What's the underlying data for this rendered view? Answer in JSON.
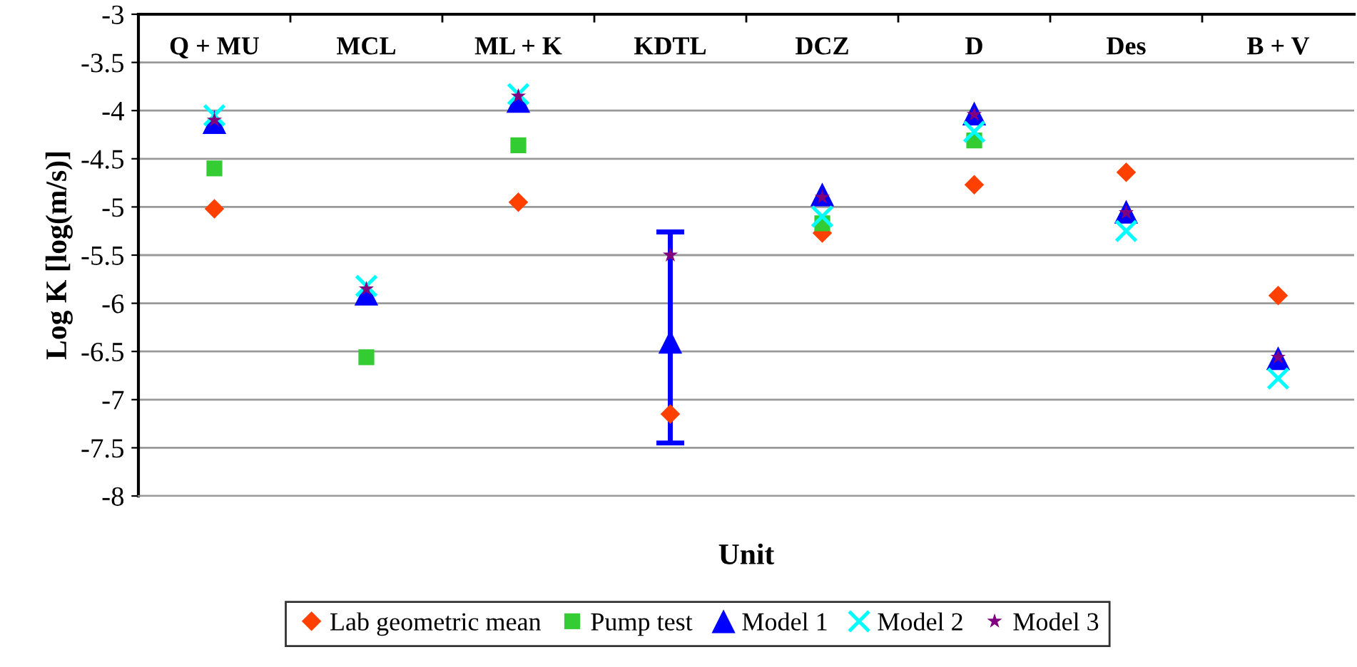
{
  "chart_data": {
    "type": "scatter",
    "xlabel": "Unit",
    "ylabel": "Log K [log(m/s)]",
    "categories": [
      "Q + MU",
      "MCL",
      "ML + K",
      "KDTL",
      "DCZ",
      "D",
      "Des",
      "B + V"
    ],
    "ylim": [
      -8,
      -3
    ],
    "yticks": [
      -8,
      -7.5,
      -7,
      -6.5,
      -6,
      -5.5,
      -5,
      -4.5,
      -4,
      -3.5,
      -3
    ],
    "grid": "y",
    "legend": "bottom",
    "series": [
      {
        "name": "Lab geometric mean",
        "color": "#ff4000",
        "marker": "diamond",
        "values": [
          -5.02,
          null,
          -4.95,
          -7.15,
          -5.27,
          -4.77,
          -4.64,
          -5.92
        ]
      },
      {
        "name": "Pump test",
        "color": "#33cc33",
        "marker": "square",
        "values": [
          -4.6,
          -6.56,
          -4.36,
          null,
          -5.17,
          -4.31,
          null,
          null
        ]
      },
      {
        "name": "Model 1",
        "color": "#0000ff",
        "marker": "triangle",
        "values": [
          -4.12,
          -5.9,
          -3.9,
          -6.4,
          -4.87,
          -4.03,
          -5.05,
          -6.57
        ],
        "errors": [
          null,
          null,
          null,
          [
            -7.45,
            -5.26
          ],
          null,
          null,
          null,
          null
        ]
      },
      {
        "name": "Model 2",
        "color": "#00ffff",
        "marker": "cross",
        "values": [
          -4.05,
          -5.82,
          -3.83,
          null,
          -5.1,
          -4.22,
          -5.25,
          -6.78
        ]
      },
      {
        "name": "Model 3",
        "color": "#800080",
        "marker": "star",
        "values": [
          -4.1,
          -5.85,
          -3.85,
          -5.5,
          -4.9,
          -4.04,
          -5.06,
          -6.56
        ]
      }
    ]
  }
}
